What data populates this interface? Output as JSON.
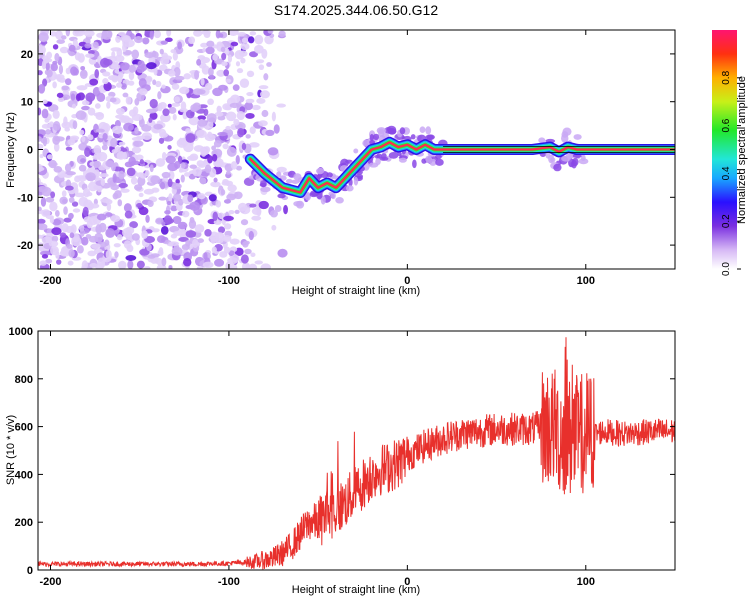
{
  "title": "S174.2025.344.06.50.G12",
  "chart_data": [
    {
      "type": "heatmap",
      "title": "S174.2025.344.06.50.G12",
      "xlabel": "Height of straight line (km)",
      "ylabel": "Frequency (Hz)",
      "xlim": [
        -207,
        150
      ],
      "ylim": [
        -25,
        25
      ],
      "xticks": [
        -200,
        -100,
        0,
        100
      ],
      "yticks": [
        -20,
        -10,
        0,
        10,
        20
      ],
      "colorbar": {
        "label": "Normalized spectral amplitude",
        "range": [
          0.0,
          1.0
        ],
        "ticks": [
          "0.0",
          "0.2",
          "0.4",
          "0.6",
          "0.8"
        ]
      },
      "ridge": {
        "x": [
          -88,
          -80,
          -70,
          -60,
          -55,
          -50,
          -45,
          -40,
          -35,
          -30,
          -25,
          -20,
          -15,
          -10,
          -5,
          0,
          5,
          10,
          15,
          20,
          30,
          50,
          70,
          80,
          85,
          90,
          95,
          100,
          120,
          150
        ],
        "y": [
          -2,
          -5,
          -8,
          -9,
          -6,
          -8,
          -7,
          -8,
          -6,
          -4,
          -2,
          0,
          0.5,
          1.5,
          0.5,
          1,
          0,
          1,
          0,
          0,
          0,
          0,
          0,
          0.5,
          -0.5,
          0.5,
          0,
          0,
          0,
          0
        ]
      }
    },
    {
      "type": "line",
      "xlabel": "Height of straight line (km)",
      "ylabel": "SNR (10 * v/v)",
      "xlim": [
        -207,
        150
      ],
      "ylim": [
        0,
        1000
      ],
      "xticks": [
        -200,
        -100,
        0,
        100
      ],
      "yticks": [
        0,
        200,
        400,
        600,
        800,
        1000
      ],
      "series": [
        {
          "name": "SNR",
          "color": "#e8302c",
          "x": [
            -207,
            -180,
            -150,
            -120,
            -100,
            -85,
            -75,
            -70,
            -65,
            -60,
            -55,
            -50,
            -45,
            -40,
            -35,
            -30,
            -25,
            -20,
            -15,
            -10,
            -5,
            0,
            10,
            20,
            30,
            40,
            50,
            60,
            70,
            75,
            80,
            85,
            90,
            95,
            100,
            105,
            110,
            120,
            130,
            140,
            150
          ],
          "values": [
            25,
            25,
            25,
            25,
            28,
            35,
            50,
            70,
            100,
            150,
            200,
            200,
            230,
            250,
            280,
            320,
            360,
            400,
            420,
            430,
            450,
            480,
            520,
            550,
            570,
            580,
            590,
            590,
            590,
            600,
            600,
            580,
            550,
            560,
            580,
            570,
            580,
            570,
            575,
            580,
            580
          ]
        }
      ]
    }
  ]
}
